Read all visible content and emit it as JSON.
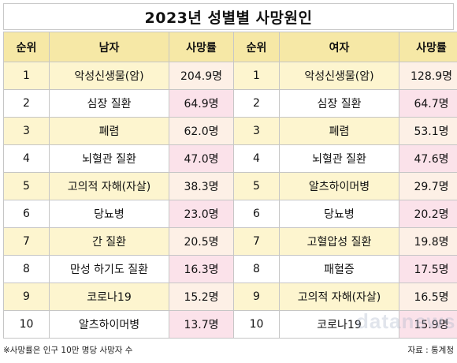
{
  "title": "2023년 성별별 사망원인",
  "headers": {
    "rank": "순위",
    "male": "남자",
    "rate": "사망률",
    "female": "여자"
  },
  "rows": [
    {
      "m_rank": "1",
      "m_cause": "악성신생물(암)",
      "m_rate": "204.9명",
      "f_rank": "1",
      "f_cause": "악성신생물(암)",
      "f_rate": "128.9명"
    },
    {
      "m_rank": "2",
      "m_cause": "심장 질환",
      "m_rate": "64.9명",
      "f_rank": "2",
      "f_cause": "심장 질환",
      "f_rate": "64.7명"
    },
    {
      "m_rank": "3",
      "m_cause": "폐렴",
      "m_rate": "62.0명",
      "f_rank": "3",
      "f_cause": "폐렴",
      "f_rate": "53.1명"
    },
    {
      "m_rank": "4",
      "m_cause": "뇌혈관 질환",
      "m_rate": "47.0명",
      "f_rank": "4",
      "f_cause": "뇌혈관 질환",
      "f_rate": "47.6명"
    },
    {
      "m_rank": "5",
      "m_cause": "고의적 자해(자살)",
      "m_rate": "38.3명",
      "f_rank": "5",
      "f_cause": "알츠하이머병",
      "f_rate": "29.7명"
    },
    {
      "m_rank": "6",
      "m_cause": "당뇨병",
      "m_rate": "23.0명",
      "f_rank": "6",
      "f_cause": "당뇨병",
      "f_rate": "20.2명"
    },
    {
      "m_rank": "7",
      "m_cause": "간 질환",
      "m_rate": "20.5명",
      "f_rank": "7",
      "f_cause": "고혈압성 질환",
      "f_rate": "19.8명"
    },
    {
      "m_rank": "8",
      "m_cause": "만성 하기도 질환",
      "m_rate": "16.3명",
      "f_rank": "8",
      "f_cause": "패혈증",
      "f_rate": "17.5명"
    },
    {
      "m_rank": "9",
      "m_cause": "코로나19",
      "m_rate": "15.2명",
      "f_rank": "9",
      "f_cause": "고의적 자해(자살)",
      "f_rate": "16.5명"
    },
    {
      "m_rank": "10",
      "m_cause": "알츠하이머병",
      "m_rate": "13.7명",
      "f_rank": "10",
      "f_cause": "코로나19",
      "f_rate": "15.9명"
    }
  ],
  "footnote": "※사망률은 인구 10만 명당 사망자 수",
  "source": "자료 : 통계청",
  "watermark": "datanews",
  "colors": {
    "header": "#f6e8a6",
    "row_odd_rank": "#fdf5cf",
    "rate_even": "#fbe2ea",
    "rate_odd": "#fdf0e6"
  }
}
